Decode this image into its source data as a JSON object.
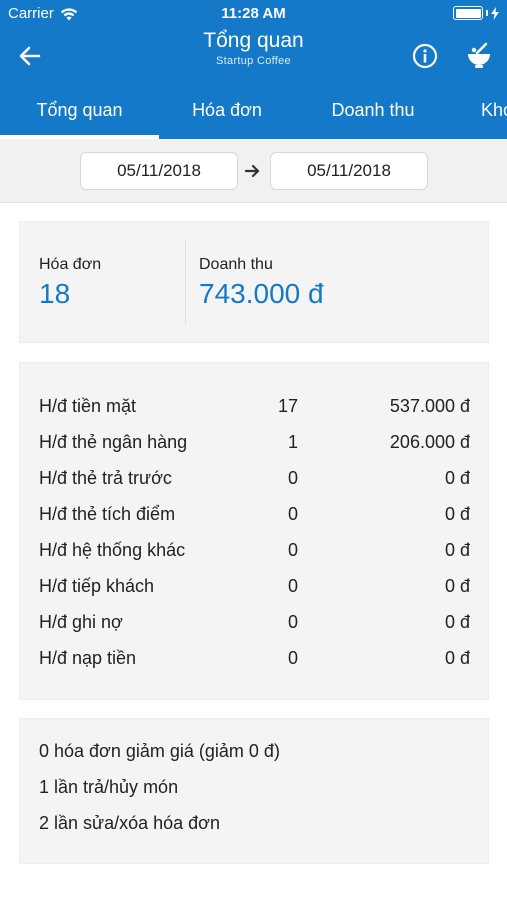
{
  "status_bar": {
    "carrier": "Carrier",
    "time": "11:28 AM",
    "wifi_icon": "wifi-icon",
    "battery_icon": "battery-icon"
  },
  "navbar": {
    "title": "Tổng quan",
    "subtitle": "Startup Coffee",
    "back_icon": "back-arrow-icon",
    "info_icon": "info-icon",
    "bowl_icon": "bowl-icon"
  },
  "tabs": [
    {
      "label": "Tổng quan",
      "active": true
    },
    {
      "label": "Hóa đơn",
      "active": false
    },
    {
      "label": "Doanh thu",
      "active": false
    },
    {
      "label": "Kho",
      "active": false
    }
  ],
  "date_range": {
    "from": "05/11/2018",
    "to": "05/11/2018",
    "separator_icon": "arrow-right-icon"
  },
  "summary": {
    "invoices_label": "Hóa đơn",
    "invoices_value": "18",
    "revenue_label": "Doanh thu",
    "revenue_value": "743.000 đ"
  },
  "breakdown": [
    {
      "name": "H/đ tiền mặt",
      "count": "17",
      "amount": "537.000 đ"
    },
    {
      "name": "H/đ thẻ ngân hàng",
      "count": "1",
      "amount": "206.000 đ"
    },
    {
      "name": "H/đ thẻ trả trước",
      "count": "0",
      "amount": "0 đ"
    },
    {
      "name": "H/đ thẻ tích điểm",
      "count": "0",
      "amount": "0 đ"
    },
    {
      "name": "H/đ hệ thống khác",
      "count": "0",
      "amount": "0 đ"
    },
    {
      "name": "H/đ tiếp khách",
      "count": "0",
      "amount": "0 đ"
    },
    {
      "name": "H/đ ghi nợ",
      "count": "0",
      "amount": "0 đ"
    },
    {
      "name": "H/đ nạp tiền",
      "count": "0",
      "amount": "0 đ"
    }
  ],
  "notes": [
    "0 hóa đơn giảm giá (giảm 0 đ)",
    "1 lần trả/hủy món",
    "2 lần sửa/xóa hóa đơn"
  ],
  "colors": {
    "primary": "#1479c9",
    "background_gray": "#f1f1f1",
    "card_gray": "#f4f4f4"
  }
}
